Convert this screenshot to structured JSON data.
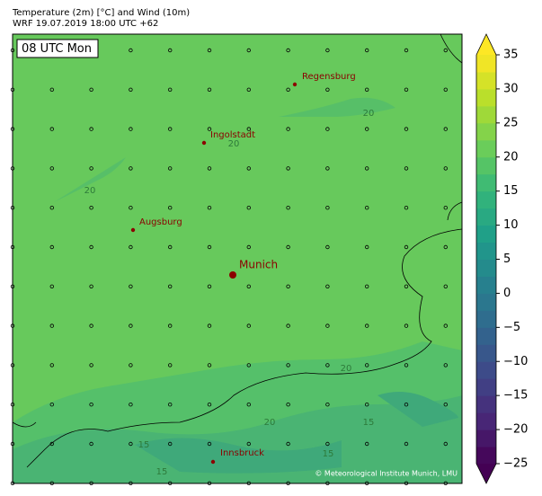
{
  "title": "Temperature (2m) [°C] and Wind (10m)",
  "subtitle": "WRF 19.07.2019 18:00 UTC +62",
  "map": {
    "time_label": "08 UTC Mon",
    "cities": [
      "Regensburg",
      "Ingolstadt",
      "Augsburg",
      "Munich",
      "Innsbruck"
    ],
    "contour_labels": [
      "20",
      "20",
      "20",
      "20",
      "20",
      "15",
      "15",
      "15",
      "15"
    ],
    "credit": "© Meteorological Institute Munich, LMU"
  },
  "colorbar": {
    "lim": [
      -25,
      35
    ],
    "ticks": [
      35,
      30,
      25,
      20,
      15,
      10,
      5,
      0,
      {
        "value": -5,
        "label": "−5"
      },
      {
        "value": -10,
        "label": "−10"
      },
      {
        "value": -15,
        "label": "−15"
      },
      {
        "value": -20,
        "label": "−20"
      },
      {
        "value": -25,
        "label": "−25"
      }
    ]
  }
}
